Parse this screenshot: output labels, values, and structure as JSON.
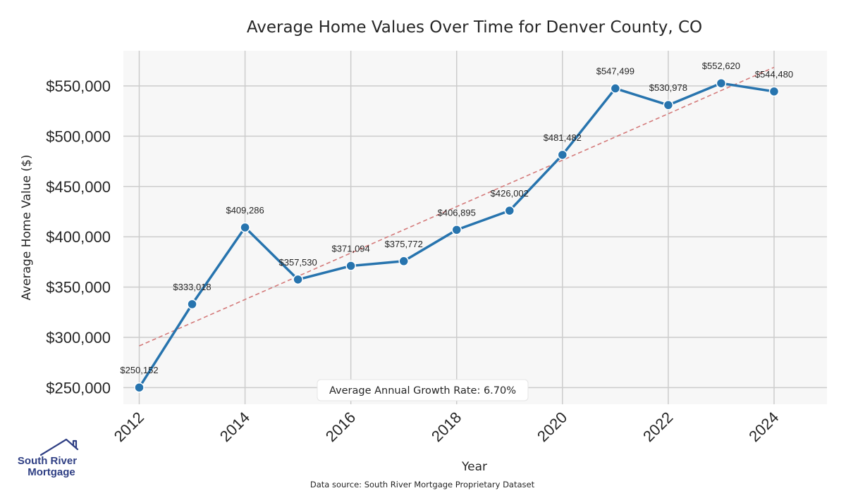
{
  "chart_data": {
    "type": "line",
    "title": "Average Home Values Over Time for Denver County, CO",
    "xlabel": "Year",
    "ylabel": "Average Home Value ($)",
    "x": [
      2012,
      2013,
      2014,
      2015,
      2016,
      2017,
      2018,
      2019,
      2020,
      2021,
      2022,
      2023,
      2024
    ],
    "values": [
      250152,
      333018,
      409286,
      357530,
      371094,
      375772,
      406895,
      426002,
      481482,
      547499,
      530978,
      552620,
      544480
    ],
    "data_labels": [
      "$250,152",
      "$333,018",
      "$409,286",
      "$357,530",
      "$371,094",
      "$375,772",
      "$406,895",
      "$426,002",
      "$481,482",
      "$547,499",
      "$530,978",
      "$552,620",
      "$544,480"
    ],
    "x_ticks": [
      2012,
      2014,
      2016,
      2018,
      2020,
      2022,
      2024
    ],
    "x_tick_labels": [
      "2012",
      "2014",
      "2016",
      "2018",
      "2020",
      "2022",
      "2024"
    ],
    "y_ticks": [
      250000,
      300000,
      350000,
      400000,
      450000,
      500000,
      550000
    ],
    "y_tick_labels": [
      "$250,000",
      "$300,000",
      "$350,000",
      "$400,000",
      "$450,000",
      "$500,000",
      "$550,000"
    ],
    "xlim": [
      2011.7,
      2025.0
    ],
    "ylim": [
      233500,
      585000
    ],
    "trendline": {
      "style": "dashed",
      "start": {
        "x": 2012,
        "y": 291500
      },
      "end": {
        "x": 2024,
        "y": 568500
      }
    },
    "grid": true,
    "series_color": "#2774ae",
    "trend_color": "#d47a7a",
    "plot_background": "#f7f7f7",
    "grid_color": "#cccccc"
  },
  "annotation": {
    "growth_rate": "Average Annual Growth Rate: 6.70%"
  },
  "footer": {
    "source": "Data source: South River Mortgage Proprietary Dataset"
  },
  "logo": {
    "line1": "South River",
    "line2": "Mortgage",
    "color": "#2f3f84"
  }
}
